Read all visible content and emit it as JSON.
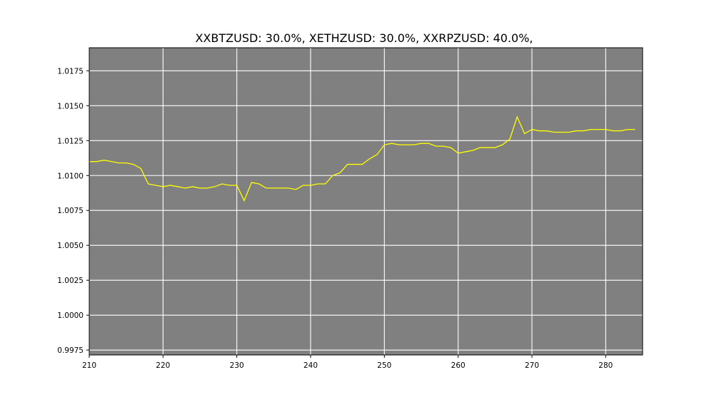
{
  "chart_data": {
    "type": "line",
    "title": "XXBTZUSD: 30.0%, XETHZUSD: 30.0%, XXRPZUSD: 40.0%,",
    "xlabel": "",
    "ylabel": "",
    "xlim": [
      210,
      285
    ],
    "ylim": [
      0.99715,
      1.01915
    ],
    "x_ticks": [
      "210",
      "220",
      "230",
      "240",
      "250",
      "260",
      "270",
      "280"
    ],
    "y_ticks": [
      "0.9975",
      "1.0000",
      "1.0025",
      "1.0050",
      "1.0075",
      "1.0100",
      "1.0125",
      "1.0150",
      "1.0175"
    ],
    "grid": true,
    "background_color": "#808080",
    "line_color": "#ffff00",
    "series": [
      {
        "x": [
          210,
          211,
          212,
          213,
          214,
          215,
          216,
          217,
          218,
          219,
          220,
          221,
          222,
          223,
          224,
          225,
          226,
          227,
          228,
          229,
          230,
          231,
          232,
          233,
          234,
          235,
          236,
          237,
          238,
          239,
          240,
          241,
          242,
          243,
          244,
          245,
          246,
          247,
          248,
          249,
          250,
          251,
          252,
          253,
          254,
          255,
          256,
          257,
          258,
          259,
          260,
          261,
          262,
          263,
          264,
          265,
          266,
          267,
          268,
          269,
          270,
          271,
          272,
          273,
          274,
          275,
          276,
          277,
          278,
          279,
          280,
          281,
          282,
          283,
          284
        ],
        "values": [
          1.011,
          1.011,
          1.0111,
          1.011,
          1.0109,
          1.0109,
          1.0108,
          1.0105,
          1.0094,
          1.0093,
          1.0092,
          1.0093,
          1.0092,
          1.0091,
          1.0092,
          1.0091,
          1.0091,
          1.0092,
          1.0094,
          1.0093,
          1.0093,
          1.0082,
          1.0095,
          1.0094,
          1.0091,
          1.0091,
          1.0091,
          1.0091,
          1.009,
          1.0093,
          1.0093,
          1.0094,
          1.0094,
          1.01,
          1.0102,
          1.0108,
          1.0108,
          1.0108,
          1.0112,
          1.0115,
          1.0122,
          1.0123,
          1.0122,
          1.0122,
          1.0122,
          1.0123,
          1.0123,
          1.0121,
          1.0121,
          1.012,
          1.0116,
          1.0117,
          1.0118,
          1.012,
          1.012,
          1.012,
          1.0122,
          1.0126,
          1.0142,
          1.013,
          1.0133,
          1.0132,
          1.0132,
          1.0131,
          1.0131,
          1.0131,
          1.0132,
          1.0132,
          1.0133,
          1.0133,
          1.0133,
          1.0132,
          1.0132,
          1.0133,
          1.0133
        ]
      }
    ]
  }
}
